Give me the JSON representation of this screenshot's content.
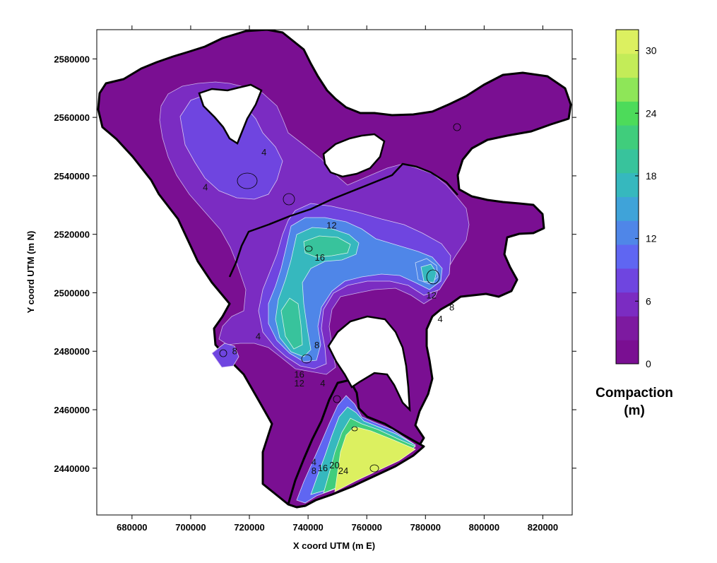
{
  "chart_data": {
    "type": "contour-map",
    "xlabel": "X coord UTM (m E)",
    "ylabel": "Y coord UTM (m N)",
    "xlim": [
      668000,
      830000
    ],
    "ylim": [
      2424000,
      2590000
    ],
    "x_ticks": [
      680000,
      700000,
      720000,
      740000,
      760000,
      780000,
      800000,
      820000
    ],
    "y_ticks": [
      2440000,
      2460000,
      2480000,
      2500000,
      2520000,
      2540000,
      2560000,
      2580000
    ],
    "x_tick_labels": [
      "680000",
      "700000",
      "720000",
      "740000",
      "760000",
      "780000",
      "800000",
      "820000"
    ],
    "y_tick_labels": [
      "2440000",
      "2460000",
      "2480000",
      "2500000",
      "2520000",
      "2540000",
      "2560000",
      "2580000"
    ],
    "colorbar": {
      "title_line1": "Compaction",
      "title_line2": "(m)",
      "min": 0,
      "max": 32,
      "tick_values": [
        0,
        6,
        12,
        18,
        24,
        30
      ],
      "tick_labels": [
        "0",
        "6",
        "12",
        "18",
        "24",
        "30"
      ],
      "colors": [
        "#7a0f92",
        "#7d1aa0",
        "#7b2cc2",
        "#6f45e0",
        "#5f66f2",
        "#4f86e8",
        "#3fa3d9",
        "#36b8be",
        "#38c39c",
        "#40cd7c",
        "#4ddb5a",
        "#8ee658",
        "#c3ec58",
        "#dcf060"
      ]
    },
    "contour_labels": [
      {
        "text": "4",
        "x": 705000,
        "y": 2535000
      },
      {
        "text": "12",
        "x": 748000,
        "y": 2522000
      },
      {
        "text": "16",
        "x": 744000,
        "y": 2511000
      },
      {
        "text": "12",
        "x": 782000,
        "y": 2498000
      },
      {
        "text": "8",
        "x": 789000,
        "y": 2494000
      },
      {
        "text": "4",
        "x": 785000,
        "y": 2490000
      },
      {
        "text": "4",
        "x": 723000,
        "y": 2484000
      },
      {
        "text": "8",
        "x": 715000,
        "y": 2479000
      },
      {
        "text": "8",
        "x": 743000,
        "y": 2481000
      },
      {
        "text": "16",
        "x": 737000,
        "y": 2471000
      },
      {
        "text": "12",
        "x": 737000,
        "y": 2468000
      },
      {
        "text": "4",
        "x": 745000,
        "y": 2468000
      },
      {
        "text": "4",
        "x": 742000,
        "y": 2441000
      },
      {
        "text": "8",
        "x": 742000,
        "y": 2438000
      },
      {
        "text": "16",
        "x": 745000,
        "y": 2439000
      },
      {
        "text": "20",
        "x": 749000,
        "y": 2440000
      },
      {
        "text": "24",
        "x": 752000,
        "y": 2438000
      },
      {
        "text": "4",
        "x": 725000,
        "y": 2547000
      }
    ]
  }
}
